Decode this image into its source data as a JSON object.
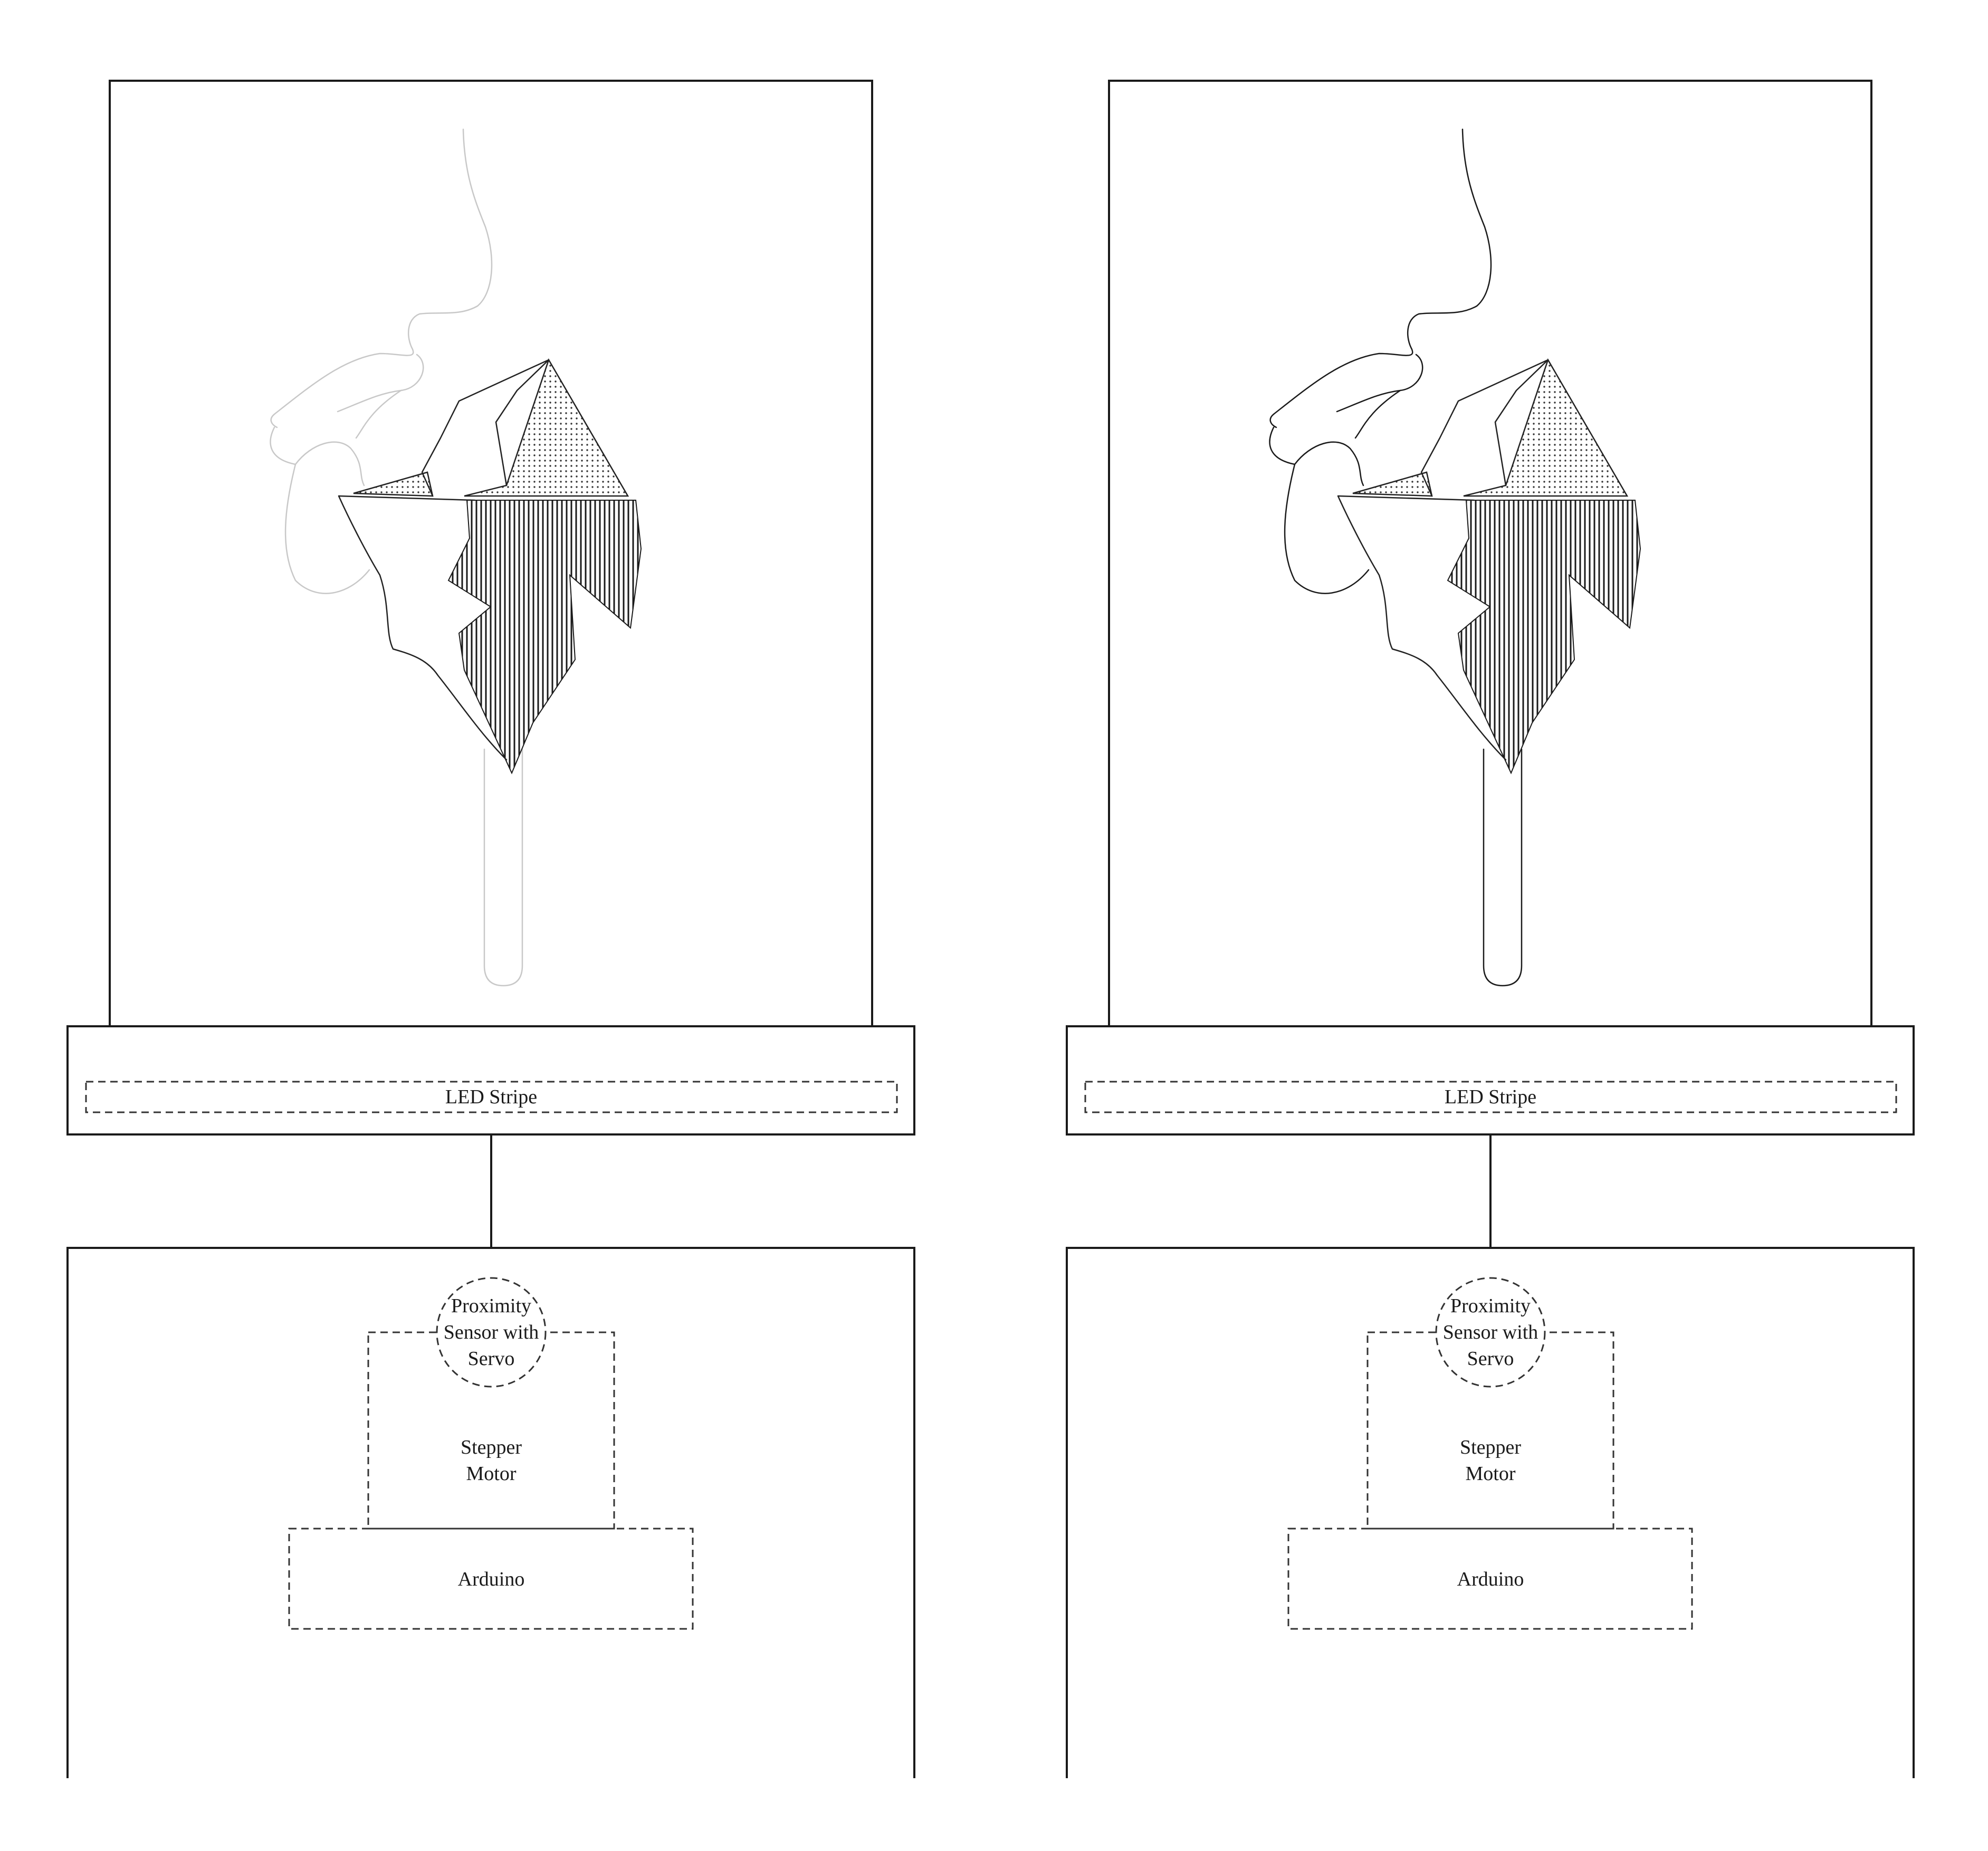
{
  "panels": [
    {
      "id": "left",
      "variant": "faded",
      "led_label": "LED Stripe",
      "sensor_label": [
        "Proximity",
        "Sensor with",
        "Servo"
      ],
      "motor_label": [
        "Stepper",
        "Motor"
      ],
      "controller_label": "Arduino"
    },
    {
      "id": "right",
      "variant": "full",
      "led_label": "LED Stripe",
      "sensor_label": [
        "Proximity",
        "Sensor with",
        "Servo"
      ],
      "motor_label": [
        "Stepper",
        "Motor"
      ],
      "controller_label": "Arduino"
    }
  ],
  "colors": {
    "frame": "#1a1a1a",
    "faded_line": "#c8c8c8",
    "ink": "#1a1a1a"
  }
}
